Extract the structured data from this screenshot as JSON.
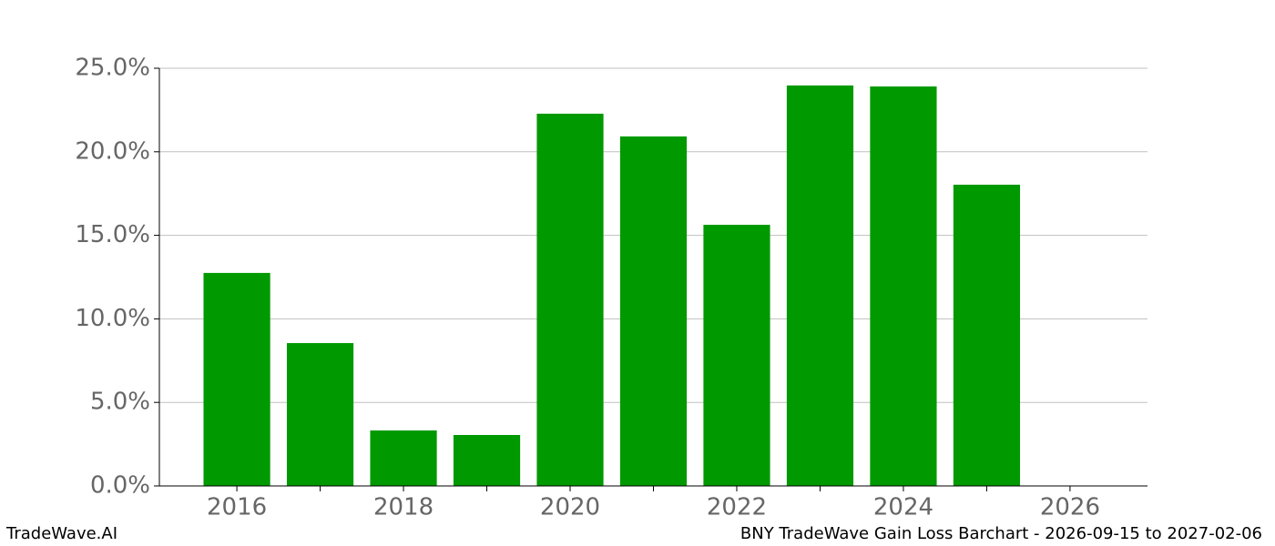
{
  "chart_data": {
    "type": "bar",
    "title": "BNY TradeWave Gain Loss Barchart - 2026-09-15 to 2027-02-06",
    "watermark": "TradeWave.AI",
    "x": [
      2016,
      2017,
      2018,
      2019,
      2020,
      2021,
      2022,
      2023,
      2024,
      2025
    ],
    "values": [
      12.75,
      8.55,
      3.32,
      3.05,
      22.28,
      20.92,
      15.63,
      23.97,
      23.91,
      18.03
    ],
    "color": "#009900",
    "xlim": [
      2015.07,
      2026.93
    ],
    "xticks": [
      2016,
      2018,
      2020,
      2022,
      2024,
      2026
    ],
    "xticks_minor": [
      2017,
      2019,
      2021,
      2023,
      2025
    ],
    "ylim": [
      0,
      25
    ],
    "yticks": [
      {
        "value": 0,
        "label": "0.0%"
      },
      {
        "value": 5,
        "label": "5.0%"
      },
      {
        "value": 10,
        "label": "10.0%"
      },
      {
        "value": 15,
        "label": "15.0%"
      },
      {
        "value": 20,
        "label": "20.0%"
      },
      {
        "value": 25,
        "label": "25.0%"
      }
    ],
    "grid": true
  }
}
